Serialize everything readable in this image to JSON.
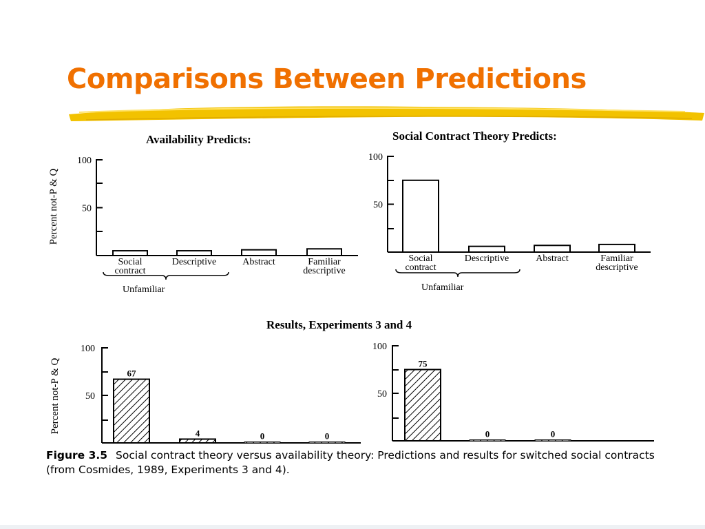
{
  "slide": {
    "title": "Comparisons Between Predictions",
    "accent_color": "#f07000",
    "underline_color": "#f2c200"
  },
  "figure": {
    "results_title": "Results, Experiments 3 and 4",
    "caption_label": "Figure 3.5",
    "caption_text": "Social contract theory versus availability theory: Predictions and results for switched social contracts (from Cosmides, 1989, Experiments 3 and 4)."
  },
  "chart_data": [
    {
      "type": "bar",
      "title": "Availability Predicts:",
      "ylabel": "Percent not-P & Q",
      "ylim": [
        0,
        100
      ],
      "yticks": [
        "100",
        "50"
      ],
      "categories": [
        "Social contract",
        "Descriptive",
        "Abstract",
        "Familiar descriptive"
      ],
      "values": [
        5,
        5,
        6,
        7
      ],
      "group_label": "Unfamiliar",
      "hatched": false,
      "data_labels": []
    },
    {
      "type": "bar",
      "title": "Social Contract Theory Predicts:",
      "ylabel": "",
      "ylim": [
        0,
        100
      ],
      "yticks": [
        "100",
        "50"
      ],
      "categories": [
        "Social contract",
        "Descriptive",
        "Abstract",
        "Familiar descriptive"
      ],
      "values": [
        75,
        6,
        7,
        8
      ],
      "group_label": "Unfamiliar",
      "hatched": false,
      "data_labels": []
    },
    {
      "type": "bar",
      "title": "",
      "ylabel": "Percent not-P & Q",
      "ylim": [
        0,
        100
      ],
      "yticks": [
        "100",
        "50"
      ],
      "categories": [
        "",
        "",
        "",
        ""
      ],
      "values": [
        67,
        4,
        0,
        0
      ],
      "hatched": true,
      "data_labels": [
        "67",
        "4",
        "0",
        "0"
      ]
    },
    {
      "type": "bar",
      "title": "",
      "ylabel": "",
      "ylim": [
        0,
        100
      ],
      "yticks": [
        "100",
        "50"
      ],
      "categories": [
        "",
        "",
        ""
      ],
      "values": [
        75,
        0,
        0
      ],
      "hatched": true,
      "data_labels": [
        "75",
        "0",
        "0"
      ]
    }
  ]
}
